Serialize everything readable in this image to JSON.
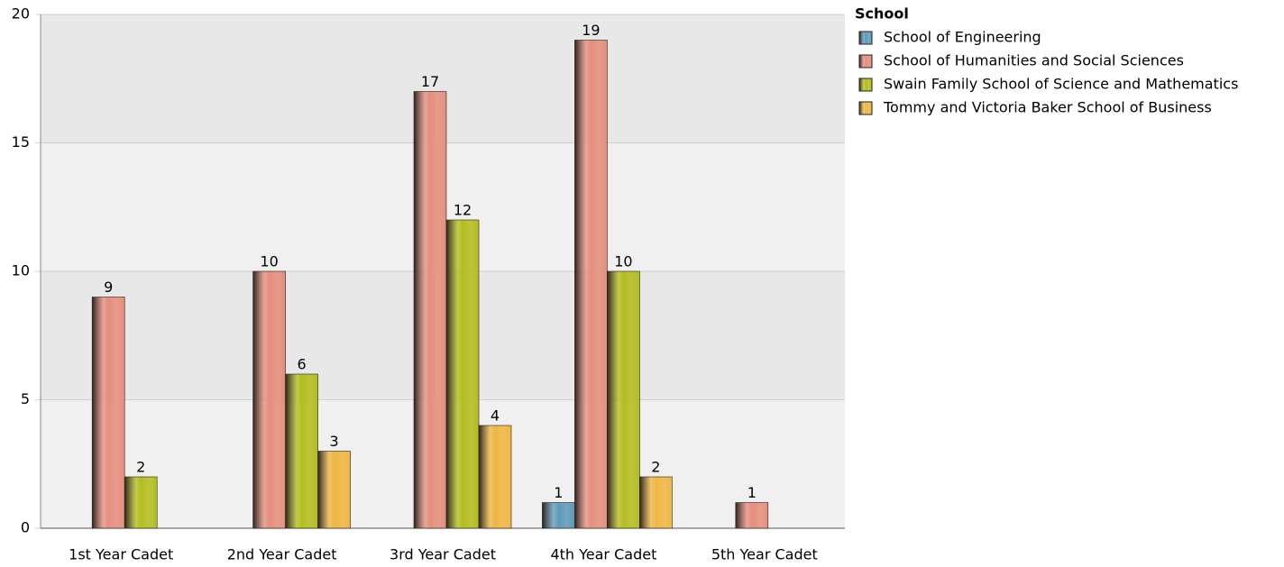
{
  "chart_data": {
    "type": "bar",
    "categories": [
      "1st Year Cadet",
      "2nd Year Cadet",
      "3rd Year Cadet",
      "4th Year Cadet",
      "5th Year Cadet"
    ],
    "legend_title": "School",
    "series": [
      {
        "name": "School of Engineering",
        "color": "#5e9ab8",
        "values": [
          null,
          null,
          null,
          1,
          null
        ]
      },
      {
        "name": "School of Humanities and Social Sciences",
        "color": "#e58e7c",
        "values": [
          9,
          10,
          17,
          19,
          1
        ]
      },
      {
        "name": "Swain Family School of Science and Mathematics",
        "color": "#b4bd1c",
        "values": [
          2,
          6,
          12,
          10,
          null
        ]
      },
      {
        "name": "Tommy and Victoria Baker School of Business",
        "color": "#f0b640",
        "values": [
          null,
          3,
          4,
          2,
          null
        ]
      }
    ],
    "ylim": [
      0,
      20
    ],
    "yticks": [
      0,
      5,
      10,
      15,
      20
    ],
    "grid": true,
    "legend": "right"
  }
}
